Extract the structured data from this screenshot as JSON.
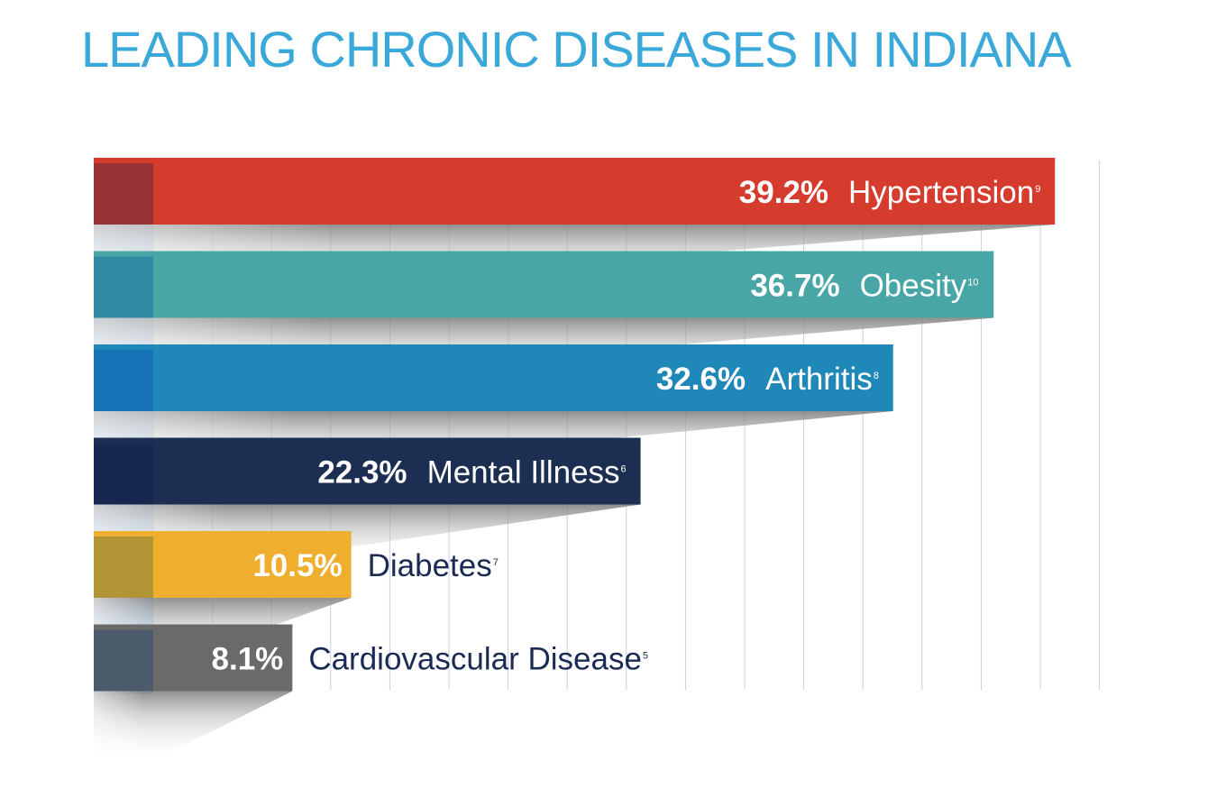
{
  "title": "LEADING CHRONIC DISEASES IN INDIANA",
  "colors": {
    "title": "#3aa8d8",
    "dark_label": "#1b2a55",
    "grid": "#c9cce6",
    "base_strip": "#b9dcfb"
  },
  "chart_data": {
    "type": "bar",
    "orientation": "horizontal",
    "title": "LEADING CHRONIC DISEASES IN INDIANA",
    "xlabel": "",
    "ylabel": "",
    "xlim": [
      0,
      50
    ],
    "grid": true,
    "legend": "none",
    "bars": [
      {
        "name": "Hypertension",
        "value": 39.2,
        "value_label": "39.2%",
        "footnote": "9",
        "color": "#d63c2e",
        "edge_color": "#973133",
        "label_inside": true
      },
      {
        "name": "Obesity",
        "value": 36.7,
        "value_label": "36.7%",
        "footnote": "10",
        "color": "#48a7a6",
        "edge_color": "#2f8aa2",
        "label_inside": true
      },
      {
        "name": "Arthritis",
        "value": 32.6,
        "value_label": "32.6%",
        "footnote": "8",
        "color": "#2088b9",
        "edge_color": "#1673b5",
        "label_inside": true
      },
      {
        "name": "Mental Illness",
        "value": 22.3,
        "value_label": "22.3%",
        "footnote": "6",
        "color": "#1c2f52",
        "edge_color": "#16284f",
        "label_inside": true
      },
      {
        "name": "Diabetes",
        "value": 10.5,
        "value_label": "10.5%",
        "footnote": "7",
        "color": "#efae2d",
        "edge_color": "#b19534",
        "label_inside": false
      },
      {
        "name": "Cardiovascular Disease",
        "value": 8.1,
        "value_label": "8.1%",
        "footnote": "5",
        "color": "#6a6a6a",
        "edge_color": "#4b5b6c",
        "label_inside": false
      }
    ]
  }
}
